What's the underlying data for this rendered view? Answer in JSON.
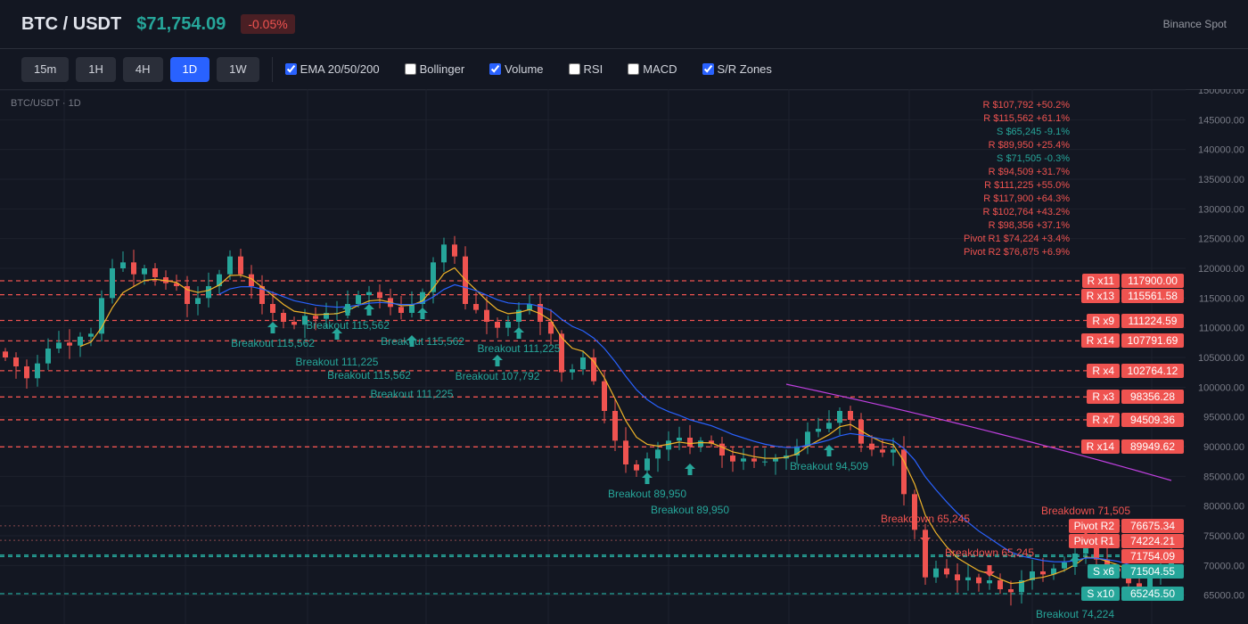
{
  "header": {
    "symbol": "BTC / USDT",
    "price": "$71,754.09",
    "change": "-0.05%",
    "source": "Binance Spot"
  },
  "toolbar": {
    "timeframes": [
      {
        "label": "15m",
        "active": false
      },
      {
        "label": "1H",
        "active": false
      },
      {
        "label": "4H",
        "active": false
      },
      {
        "label": "1D",
        "active": true
      },
      {
        "label": "1W",
        "active": false
      }
    ],
    "indicators": [
      {
        "label": "EMA 20/50/200",
        "checked": true
      },
      {
        "label": "Bollinger",
        "checked": false
      },
      {
        "label": "Volume",
        "checked": true
      },
      {
        "label": "RSI",
        "checked": false
      },
      {
        "label": "MACD",
        "checked": false
      },
      {
        "label": "S/R Zones",
        "checked": true
      }
    ]
  },
  "chart_label": "BTC/USDT · 1D",
  "colors": {
    "up": "#26a69a",
    "down": "#ef5350",
    "ema20": "#f0b429",
    "ema50": "#2962ff",
    "ema200": "#c040e0",
    "accent": "#2962ff"
  },
  "level_annotations": [
    {
      "text": "R $107,792 +50.2%",
      "type": "R"
    },
    {
      "text": "R $115,562 +61.1%",
      "type": "R"
    },
    {
      "text": "S $65,245 -9.1%",
      "type": "S"
    },
    {
      "text": "R $89,950 +25.4%",
      "type": "R"
    },
    {
      "text": "S $71,505 -0.3%",
      "type": "S"
    },
    {
      "text": "R $94,509 +31.7%",
      "type": "R"
    },
    {
      "text": "R $111,225 +55.0%",
      "type": "R"
    },
    {
      "text": "R $117,900 +64.3%",
      "type": "R"
    },
    {
      "text": "R $102,764 +43.2%",
      "type": "R"
    },
    {
      "text": "R $98,356 +37.1%",
      "type": "R"
    },
    {
      "text": "Pivot R1 $74,224 +3.4%",
      "type": "R"
    },
    {
      "text": "Pivot R2 $76,675 +6.9%",
      "type": "R"
    }
  ],
  "chart_data": {
    "type": "candlestick",
    "y_axis": {
      "ylim": [
        60000,
        150000
      ],
      "ticks": [
        "150000.00",
        "145000.00",
        "140000.00",
        "135000.00",
        "130000.00",
        "125000.00",
        "120000.00",
        "115000.00",
        "110000.00",
        "105000.00",
        "100000.00",
        "95000.00",
        "90000.00",
        "85000.00",
        "80000.00",
        "75000.00",
        "70000.00",
        "65000.00"
      ],
      "tick_values": [
        150000,
        145000,
        140000,
        135000,
        130000,
        125000,
        120000,
        115000,
        110000,
        105000,
        100000,
        95000,
        90000,
        85000,
        80000,
        75000,
        70000,
        65000
      ]
    },
    "grid": true,
    "closes": [
      105000,
      103500,
      101500,
      104000,
      106500,
      107500,
      107000,
      108500,
      109000,
      115000,
      120000,
      121000,
      119000,
      120000,
      118500,
      117500,
      117000,
      114000,
      115000,
      117000,
      119000,
      122000,
      119000,
      117000,
      114000,
      112500,
      111000,
      110500,
      112000,
      111500,
      112500,
      112500,
      114000,
      115500,
      116000,
      115000,
      113500,
      112500,
      114000,
      116000,
      121000,
      124000,
      122000,
      114000,
      113000,
      111000,
      110000,
      111000,
      113000,
      114000,
      111000,
      109000,
      102500,
      103000,
      105000,
      101000,
      96000,
      91000,
      87000,
      86000,
      88000,
      89500,
      91000,
      91500,
      90000,
      91000,
      90500,
      88500,
      87500,
      88000,
      87500,
      87500,
      88000,
      88500,
      90000,
      92500,
      93000,
      94000,
      96000,
      94500,
      90500,
      89500,
      89000,
      89500,
      82000,
      76000,
      68000,
      69500,
      68500,
      67500,
      68000,
      67000,
      67500,
      66000,
      65500,
      67500,
      69000,
      68500,
      69500,
      70500,
      72000,
      74000,
      71000,
      69500,
      69000,
      67000,
      66000,
      68000,
      70000,
      71754.09
    ],
    "ema200_visible": {
      "start_index": 73,
      "start_value": 100500,
      "end_value": 84300
    },
    "levels": [
      {
        "tag": "R x11",
        "value": "117900.00",
        "price": 117900,
        "kind": "R"
      },
      {
        "tag": "R x13",
        "value": "115561.58",
        "price": 115561.58,
        "kind": "R"
      },
      {
        "tag": "R x9",
        "value": "111224.59",
        "price": 111224.59,
        "kind": "R"
      },
      {
        "tag": "R x14",
        "value": "107791.69",
        "price": 107791.69,
        "kind": "R"
      },
      {
        "tag": "R x4",
        "value": "102764.12",
        "price": 102764.12,
        "kind": "R"
      },
      {
        "tag": "R x3",
        "value": "98356.28",
        "price": 98356.28,
        "kind": "R"
      },
      {
        "tag": "R x7",
        "value": "94509.36",
        "price": 94509.36,
        "kind": "R"
      },
      {
        "tag": "R x14",
        "value": "89949.62",
        "price": 89949.62,
        "kind": "R"
      },
      {
        "tag": "Pivot R2",
        "value": "76675.34",
        "price": 76675.34,
        "kind": "P"
      },
      {
        "tag": "Pivot R1",
        "value": "74224.21",
        "price": 74224.21,
        "kind": "P"
      },
      {
        "tag": "",
        "value": "71754.09",
        "price": 71754.09,
        "kind": "C"
      },
      {
        "tag": "S x6",
        "value": "71504.55",
        "price": 71504.55,
        "kind": "S"
      },
      {
        "tag": "S x10",
        "value": "65245.50",
        "price": 65245.5,
        "kind": "S"
      }
    ],
    "markers": [
      {
        "type": "breakout",
        "index": 25,
        "price": 109950,
        "label": "Breakout 115,562"
      },
      {
        "type": "breakout",
        "index": 31,
        "price": 108900,
        "label": "Breakout 111,225"
      },
      {
        "type": "breakout",
        "index": 32,
        "price": 112950,
        "label": "Breakout 115,562"
      },
      {
        "type": "breakout",
        "index": 34,
        "price": 112950,
        "label": "Breakout 115,562"
      },
      {
        "type": "breakout",
        "index": 38,
        "price": 107700,
        "label": "Breakout 111,225"
      },
      {
        "type": "breakout",
        "index": 39,
        "price": 112350,
        "label": "Breakout 115,562"
      },
      {
        "type": "breakout",
        "index": 46,
        "price": 104400,
        "label": "Breakout 107,792"
      },
      {
        "type": "breakout",
        "index": 48,
        "price": 109050,
        "label": "Breakout 111,225"
      },
      {
        "type": "breakout",
        "index": 60,
        "price": 84600,
        "label": "Breakout 89,950"
      },
      {
        "type": "breakout",
        "index": 64,
        "price": 86100,
        "label": "Breakout 89,950"
      },
      {
        "type": "breakout",
        "index": 77,
        "price": 89250,
        "label": "Breakout 94,509"
      },
      {
        "type": "breakout",
        "index": 100,
        "price": 70650,
        "label": "Breakout 74,224"
      },
      {
        "type": "breakdown",
        "index": 86,
        "price": 74850,
        "label": "Breakdown 65,245"
      },
      {
        "type": "breakdown",
        "index": 92,
        "price": 69150,
        "label": "Breakdown 65,245"
      },
      {
        "type": "breakdown",
        "index": 101,
        "price": 76200,
        "label": "Breakdown 71,505"
      }
    ]
  }
}
